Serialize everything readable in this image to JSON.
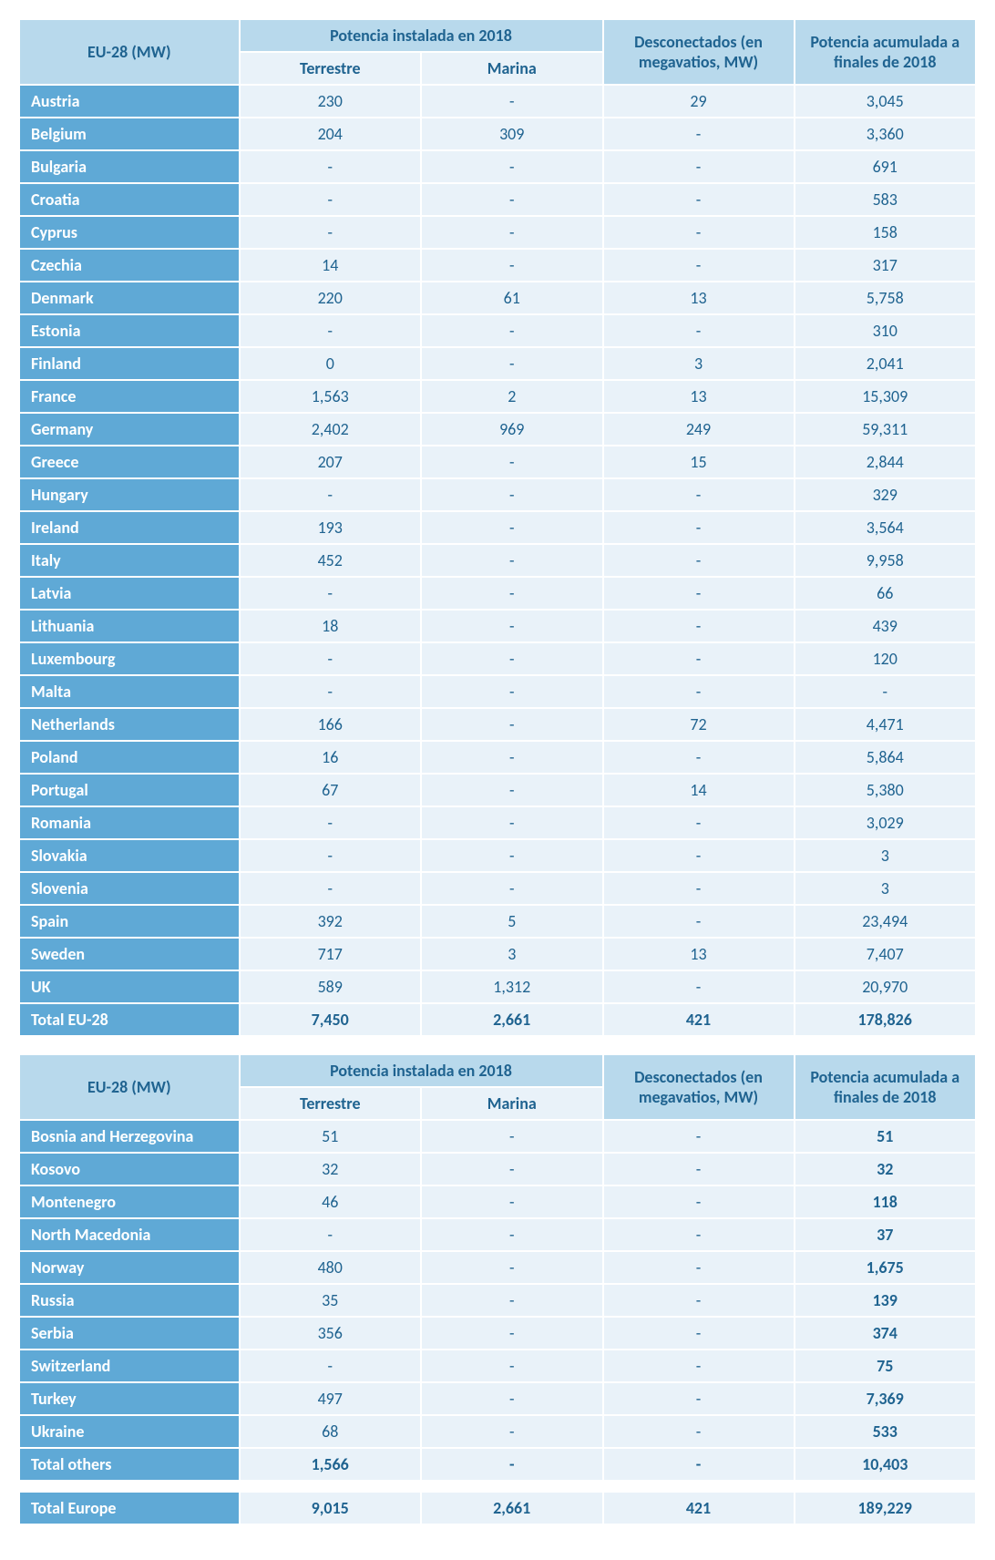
{
  "colors": {
    "header_bg": "#b8d9ec",
    "subheader_bg": "#e9f2f9",
    "country_bg": "#5fa9d6",
    "country_text": "#ffffff",
    "value_bg": "#e9f2f9",
    "text_color": "#1f6390",
    "border": "#ffffff"
  },
  "headers": {
    "main": "EU-28 (MW)",
    "installed": "Potencia instalada en 2018",
    "terrestre": "Terrestre",
    "marina": "Marina",
    "disconnected": "Desconectados (en megavatios, MW)",
    "cumulative": "Potencia acumulada a finales de 2018"
  },
  "table1": {
    "rows": [
      {
        "name": "Austria",
        "terrestre": "230",
        "marina": "-",
        "disc": "29",
        "cum": "3,045"
      },
      {
        "name": "Belgium",
        "terrestre": "204",
        "marina": "309",
        "disc": "-",
        "cum": "3,360"
      },
      {
        "name": "Bulgaria",
        "terrestre": "-",
        "marina": "-",
        "disc": "-",
        "cum": "691"
      },
      {
        "name": "Croatia",
        "terrestre": "-",
        "marina": "-",
        "disc": "-",
        "cum": "583"
      },
      {
        "name": "Cyprus",
        "terrestre": "-",
        "marina": "-",
        "disc": "-",
        "cum": "158"
      },
      {
        "name": "Czechia",
        "terrestre": "14",
        "marina": "-",
        "disc": "-",
        "cum": "317"
      },
      {
        "name": "Denmark",
        "terrestre": "220",
        "marina": "61",
        "disc": "13",
        "cum": "5,758"
      },
      {
        "name": "Estonia",
        "terrestre": "-",
        "marina": "-",
        "disc": "-",
        "cum": "310"
      },
      {
        "name": "Finland",
        "terrestre": "0",
        "marina": "-",
        "disc": "3",
        "cum": "2,041"
      },
      {
        "name": "France",
        "terrestre": "1,563",
        "marina": "2",
        "disc": "13",
        "cum": "15,309"
      },
      {
        "name": "Germany",
        "terrestre": "2,402",
        "marina": "969",
        "disc": "249",
        "cum": "59,311"
      },
      {
        "name": "Greece",
        "terrestre": "207",
        "marina": "-",
        "disc": "15",
        "cum": "2,844"
      },
      {
        "name": "Hungary",
        "terrestre": "-",
        "marina": "-",
        "disc": "-",
        "cum": "329"
      },
      {
        "name": "Ireland",
        "terrestre": "193",
        "marina": "-",
        "disc": "-",
        "cum": "3,564"
      },
      {
        "name": "Italy",
        "terrestre": "452",
        "marina": "-",
        "disc": "-",
        "cum": "9,958"
      },
      {
        "name": "Latvia",
        "terrestre": "-",
        "marina": "-",
        "disc": "-",
        "cum": "66"
      },
      {
        "name": "Lithuania",
        "terrestre": "18",
        "marina": "-",
        "disc": "-",
        "cum": "439"
      },
      {
        "name": "Luxembourg",
        "terrestre": "-",
        "marina": "-",
        "disc": "-",
        "cum": "120"
      },
      {
        "name": "Malta",
        "terrestre": "-",
        "marina": "-",
        "disc": "-",
        "cum": "-"
      },
      {
        "name": "Netherlands",
        "terrestre": "166",
        "marina": "-",
        "disc": "72",
        "cum": "4,471"
      },
      {
        "name": "Poland",
        "terrestre": "16",
        "marina": "-",
        "disc": "-",
        "cum": "5,864"
      },
      {
        "name": "Portugal",
        "terrestre": "67",
        "marina": "-",
        "disc": "14",
        "cum": "5,380"
      },
      {
        "name": "Romania",
        "terrestre": "-",
        "marina": "-",
        "disc": "-",
        "cum": "3,029"
      },
      {
        "name": "Slovakia",
        "terrestre": "-",
        "marina": "-",
        "disc": "-",
        "cum": "3"
      },
      {
        "name": "Slovenia",
        "terrestre": "-",
        "marina": "-",
        "disc": "-",
        "cum": "3"
      },
      {
        "name": "Spain",
        "terrestre": "392",
        "marina": "5",
        "disc": "-",
        "cum": "23,494"
      },
      {
        "name": "Sweden",
        "terrestre": "717",
        "marina": "3",
        "disc": "13",
        "cum": "7,407"
      },
      {
        "name": "UK",
        "terrestre": "589",
        "marina": "1,312",
        "disc": "-",
        "cum": "20,970"
      }
    ],
    "total": {
      "name": "Total EU-28",
      "terrestre": "7,450",
      "marina": "2,661",
      "disc": "421",
      "cum": "178,826"
    }
  },
  "table2": {
    "rows": [
      {
        "name": "Bosnia and Herzegovina",
        "terrestre": "51",
        "marina": "-",
        "disc": "-",
        "cum": "51",
        "cumBold": true
      },
      {
        "name": "Kosovo",
        "terrestre": "32",
        "marina": "-",
        "disc": "-",
        "cum": "32",
        "cumBold": true
      },
      {
        "name": "Montenegro",
        "terrestre": "46",
        "marina": "-",
        "disc": "-",
        "cum": "118",
        "cumBold": true
      },
      {
        "name": "North Macedonia",
        "terrestre": "-",
        "marina": "-",
        "disc": "-",
        "cum": "37",
        "cumBold": true
      },
      {
        "name": "Norway",
        "terrestre": "480",
        "marina": "-",
        "disc": "-",
        "cum": "1,675",
        "cumBold": true
      },
      {
        "name": "Russia",
        "terrestre": "35",
        "marina": "-",
        "disc": "-",
        "cum": "139",
        "cumBold": true
      },
      {
        "name": "Serbia",
        "terrestre": "356",
        "marina": "-",
        "disc": "-",
        "cum": "374",
        "cumBold": true
      },
      {
        "name": "Switzerland",
        "terrestre": "-",
        "marina": "-",
        "disc": "-",
        "cum": "75",
        "cumBold": true
      },
      {
        "name": "Turkey",
        "terrestre": "497",
        "marina": "-",
        "disc": "-",
        "cum": "7,369",
        "cumBold": true
      },
      {
        "name": "Ukraine",
        "terrestre": "68",
        "marina": "-",
        "disc": "-",
        "cum": "533",
        "cumBold": true
      }
    ],
    "totalOthers": {
      "name": "Total others",
      "terrestre": "1,566",
      "marina": "-",
      "disc": "-",
      "cum": "10,403"
    },
    "totalEurope": {
      "name": "Total Europe",
      "terrestre": "9,015",
      "marina": "2,661",
      "disc": "421",
      "cum": "189,229"
    }
  }
}
